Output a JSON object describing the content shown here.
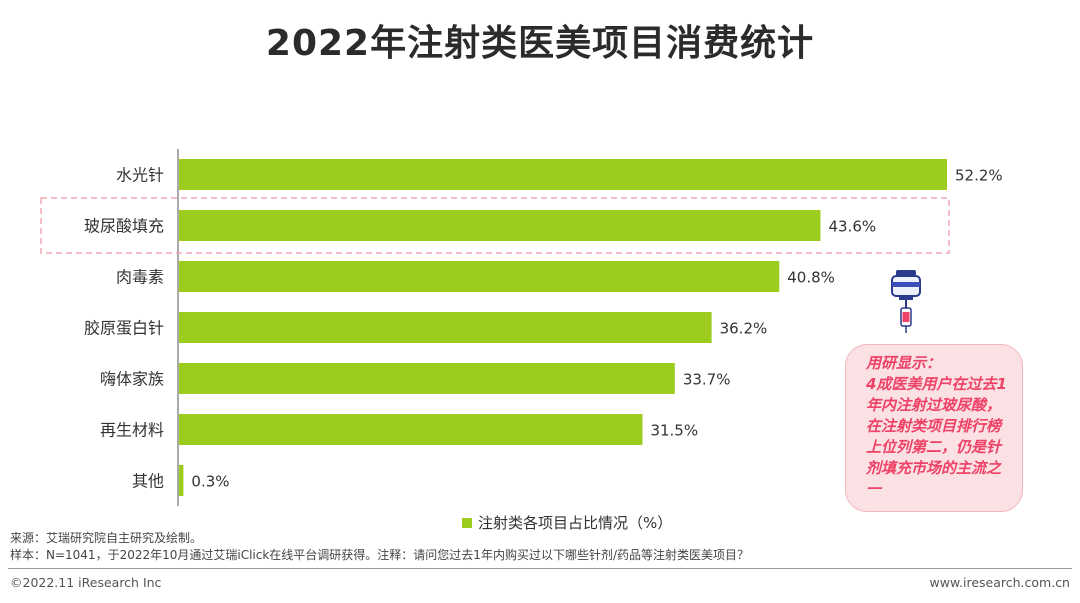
{
  "title": "2022年注射类医美项目消费统计",
  "chart_data": {
    "type": "bar",
    "orientation": "horizontal",
    "categories": [
      "水光针",
      "玻尿酸填充",
      "肉毒素",
      "胶原蛋白针",
      "嗨体家族",
      "再生材料",
      "其他"
    ],
    "values": [
      52.2,
      43.6,
      40.8,
      36.2,
      33.7,
      31.5,
      0.3
    ],
    "value_labels": [
      "52.2%",
      "43.6%",
      "40.8%",
      "36.2%",
      "33.7%",
      "31.5%",
      "0.3%"
    ],
    "highlighted_category": "玻尿酸填充",
    "series_name": "注射类各项目占比情况（%）",
    "bar_color": "#9ccc1e",
    "highlight_color": "#f0a8b4",
    "xlim": [
      0,
      52.2
    ]
  },
  "note": {
    "title": "用研显示：",
    "body": "4成医美用户在过去1年内注射过玻尿酸，在注射类项目排行榜上位列第二，仍是针剂填充市场的主流之一"
  },
  "source": {
    "line1": "来源：艾瑞研究院自主研究及绘制。",
    "line2": "样本：N=1041，于2022年10月通过艾瑞iClick在线平台调研获得。注释：请问您过去1年内购买过以下哪些针剂/药品等注射类医美项目？"
  },
  "footer": {
    "copyright": "©2022.11 iResearch Inc",
    "website": "www.iresearch.com.cn"
  }
}
